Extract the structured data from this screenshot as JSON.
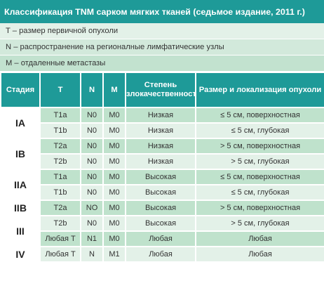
{
  "title": "Классификация TNM сарком мягких тканей (седьмое издание, 2011 г.)",
  "legend": [
    "T – размер первичной опухоли",
    "N – распространение на регионалные лимфатические узлы",
    "M – отдаленные метастазы"
  ],
  "table": {
    "headers": [
      "Стадия",
      "T",
      "N",
      "M",
      "Степень злокачественности",
      "Размер и локализация опухоли"
    ],
    "rows": [
      {
        "stage": "IA",
        "t": "T1a",
        "n": "N0",
        "m": "M0",
        "grade": "Низкая",
        "size": "≤ 5 см, поверхностная"
      },
      {
        "t": "T1b",
        "n": "N0",
        "m": "M0",
        "grade": "Низкая",
        "size": "≤ 5 см, глубокая"
      },
      {
        "stage": "IB",
        "t": "T2a",
        "n": "N0",
        "m": "M0",
        "grade": "Низкая",
        "size": "> 5 см, поверхностная"
      },
      {
        "t": "T2b",
        "n": "N0",
        "m": "M0",
        "grade": "Низкая",
        "size": "> 5 см, глубокая"
      },
      {
        "stage": "IIA",
        "t": "T1a",
        "n": "N0",
        "m": "M0",
        "grade": "Высокая",
        "size": "≤ 5 см, поверхностная"
      },
      {
        "t": "T1b",
        "n": "N0",
        "m": "M0",
        "grade": "Высокая",
        "size": "≤ 5 см, глубокая"
      },
      {
        "stage": "IIB",
        "t": "T2a",
        "n": "NO",
        "m": "M0",
        "grade": "Высокая",
        "size": "> 5 см, поверхностная"
      },
      {
        "stage": "III",
        "t": "T2b",
        "n": "N0",
        "m": "M0",
        "grade": "Высокая",
        "size": "> 5 см,  глубокая"
      },
      {
        "t": "Любая T",
        "n": "N1",
        "m": "M0",
        "grade": "Любая",
        "size": "Любая"
      },
      {
        "stage": "IV",
        "t": "Любая T",
        "n": "N",
        "m": "M1",
        "grade": "Любая",
        "size": "Любая"
      }
    ]
  },
  "colors": {
    "header_teal": "#1e9a98",
    "row_dark": "#bfe2cc",
    "row_light": "#e3f1e8"
  }
}
